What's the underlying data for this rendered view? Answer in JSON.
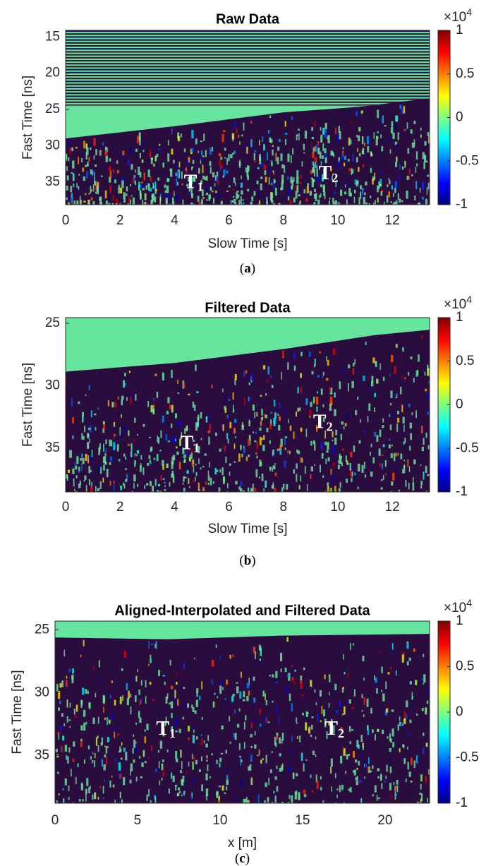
{
  "chart_data": [
    {
      "type": "heatmap",
      "title": "Raw Data",
      "xlabel": "Slow Time [s]",
      "ylabel": "Fast Time [ns]",
      "xlim": [
        0,
        13.37
      ],
      "xticks": [
        0,
        2,
        4,
        6,
        8,
        10,
        12
      ],
      "ylim": [
        14.1,
        38.1
      ],
      "yticks": [
        15,
        20,
        25,
        30,
        35
      ],
      "y_reversed": true,
      "colormap": "jet",
      "clim": [
        -1,
        1
      ],
      "cticks": [
        1,
        0.5,
        0,
        -0.5,
        -1
      ],
      "colorbar_multiplier": "×10",
      "colorbar_exponent": "4",
      "annotations": [
        {
          "text": "T",
          "sub": "1"
        },
        {
          "text": "T",
          "sub": "2"
        }
      ],
      "caption": [
        "(",
        "a",
        ")"
      ]
    },
    {
      "type": "heatmap",
      "title": "Filtered Data",
      "xlabel": "Slow Time [s]",
      "ylabel": "Fast Time [ns]",
      "xlim": [
        0,
        13.37
      ],
      "xticks": [
        0,
        2,
        4,
        6,
        8,
        10,
        12
      ],
      "ylim": [
        24.55,
        38.5
      ],
      "yticks": [
        25,
        30,
        35
      ],
      "y_reversed": true,
      "colormap": "jet",
      "clim": [
        -1,
        1
      ],
      "cticks": [
        1,
        0.5,
        0,
        -0.5,
        -1
      ],
      "colorbar_multiplier": "×10",
      "colorbar_exponent": "4",
      "annotations": [
        {
          "text": "T",
          "sub": "1"
        },
        {
          "text": "T",
          "sub": "2"
        }
      ],
      "caption": [
        "(",
        "b",
        ")"
      ]
    },
    {
      "type": "heatmap",
      "title": "Aligned-Interpolated and Filtered Data",
      "xlabel": "x [m]",
      "ylabel": "Fast Time [ns]",
      "xlim": [
        0,
        22.7
      ],
      "xticks": [
        0,
        5,
        10,
        15,
        20
      ],
      "ylim": [
        24.3,
        38.8
      ],
      "yticks": [
        25,
        30,
        35
      ],
      "y_reversed": true,
      "colormap": "jet",
      "clim": [
        -1,
        1
      ],
      "cticks": [
        1,
        0.5,
        0,
        -0.5,
        -1
      ],
      "colorbar_multiplier": "×10",
      "colorbar_exponent": "4",
      "annotations": [
        {
          "text": "T",
          "sub": "1"
        },
        {
          "text": "T",
          "sub": "2"
        }
      ],
      "caption": [
        "(",
        "c",
        ")"
      ]
    }
  ]
}
